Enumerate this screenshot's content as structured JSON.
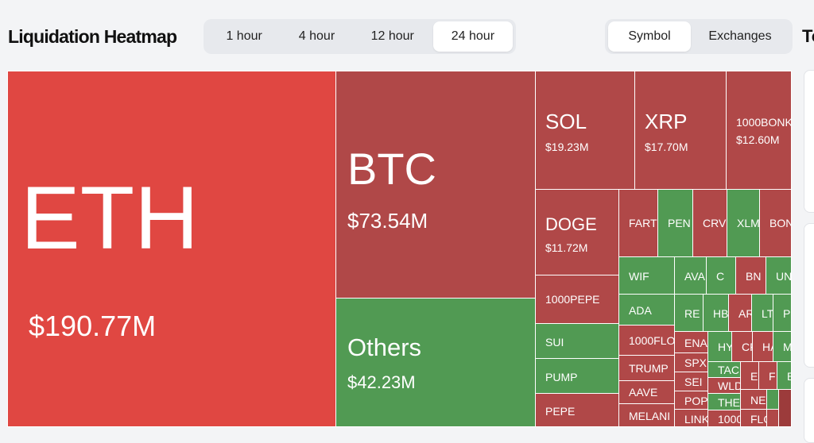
{
  "header": {
    "title": "Liquidation Heatmap",
    "timeframes": [
      "1 hour",
      "4 hour",
      "12 hour",
      "24 hour"
    ],
    "active_timeframe": "24 hour",
    "views": [
      "Symbol",
      "Exchanges"
    ],
    "active_view": "Symbol",
    "right_panel_title": "To"
  },
  "colors": {
    "long": "#b04848",
    "highlight": "#e04742",
    "short": "#519a53"
  },
  "tiles": {
    "eth": {
      "symbol": "ETH",
      "value": "$190.77M"
    },
    "btc": {
      "symbol": "BTC",
      "value": "$73.54M"
    },
    "others": {
      "symbol": "Others",
      "value": "$42.23M"
    },
    "sol": {
      "symbol": "SOL",
      "value": "$19.23M"
    },
    "xrp": {
      "symbol": "XRP",
      "value": "$17.70M"
    },
    "bonk1000": {
      "symbol": "1000BONK",
      "value": "$12.60M"
    },
    "doge": {
      "symbol": "DOGE",
      "value": "$11.72M"
    },
    "pepe1000": {
      "symbol": "1000PEPE"
    },
    "sui": {
      "symbol": "SUI"
    },
    "pump": {
      "symbol": "PUMP"
    },
    "pepe": {
      "symbol": "PEPE"
    },
    "fartcoin": {
      "symbol": "FART"
    },
    "pengu": {
      "symbol": "PEN"
    },
    "crv": {
      "symbol": "CRV"
    },
    "xlm": {
      "symbol": "XLM"
    },
    "bonk": {
      "symbol": "BON"
    },
    "wif": {
      "symbol": "WIF"
    },
    "ada": {
      "symbol": "ADA"
    },
    "floki1000": {
      "symbol": "1000FLO"
    },
    "trump": {
      "symbol": "TRUMP"
    },
    "aave": {
      "symbol": "AAVE"
    },
    "melania": {
      "symbol": "MELANI"
    },
    "avax": {
      "symbol": "AVA"
    },
    "c": {
      "symbol": "C"
    },
    "bnb": {
      "symbol": "BN"
    },
    "uni": {
      "symbol": "UN"
    },
    "re": {
      "symbol": "RE"
    },
    "hb": {
      "symbol": "HB"
    },
    "ar": {
      "symbol": "AR"
    },
    "lt": {
      "symbol": "LT"
    },
    "p": {
      "symbol": "P"
    },
    "ena": {
      "symbol": "ENA"
    },
    "hy": {
      "symbol": "HY"
    },
    "cr": {
      "symbol": "CR"
    },
    "ha": {
      "symbol": "HA"
    },
    "m": {
      "symbol": "M"
    },
    "spx": {
      "symbol": "SPX"
    },
    "tac": {
      "symbol": "TAC"
    },
    "e": {
      "symbol": "E"
    },
    "f": {
      "symbol": "F"
    },
    "b": {
      "symbol": "B"
    },
    "sei": {
      "symbol": "SEI"
    },
    "wld": {
      "symbol": "WLD"
    },
    "pop": {
      "symbol": "POP"
    },
    "the": {
      "symbol": "THE"
    },
    "ne": {
      "symbol": "NE"
    },
    "link": {
      "symbol": "LINK"
    },
    "x1000": {
      "symbol": "1000"
    },
    "flo": {
      "symbol": "FLO"
    }
  }
}
